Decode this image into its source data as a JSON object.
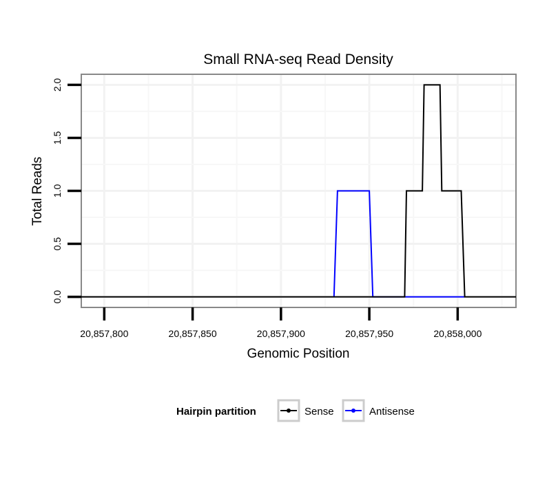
{
  "chart_data": {
    "type": "line",
    "title": "Small RNA-seq Read Density",
    "xlabel": "Genomic Position",
    "ylabel": "Total Reads",
    "xlim": [
      20857787,
      20858033
    ],
    "ylim": [
      -0.1,
      2.1
    ],
    "x_ticks": [
      20857800,
      20857850,
      20857900,
      20857950,
      20858000
    ],
    "x_tick_labels": [
      "20,857,800",
      "20,857,850",
      "20,857,900",
      "20,857,950",
      "20,858,000"
    ],
    "y_ticks": [
      0.0,
      0.5,
      1.0,
      1.5,
      2.0
    ],
    "y_tick_labels": [
      "0.0",
      "0.5",
      "1.0",
      "1.5",
      "2.0"
    ],
    "grid": true,
    "legend": {
      "title": "Hairpin partition",
      "position": "bottom",
      "entries": [
        "Sense",
        "Antisense"
      ]
    },
    "series": [
      {
        "name": "Antisense",
        "color": "#0000ff",
        "x": [
          20857930,
          20857932,
          20857950,
          20857952,
          20858004
        ],
        "y": [
          0,
          1,
          1,
          0,
          0
        ]
      },
      {
        "name": "Sense",
        "color": "#000000",
        "x": [
          20857787,
          20857970,
          20857971,
          20857980,
          20857981,
          20857990,
          20857991,
          20858002,
          20858004,
          20858033
        ],
        "y": [
          0,
          0,
          1,
          1,
          2,
          2,
          1,
          1,
          0,
          0
        ]
      }
    ]
  }
}
